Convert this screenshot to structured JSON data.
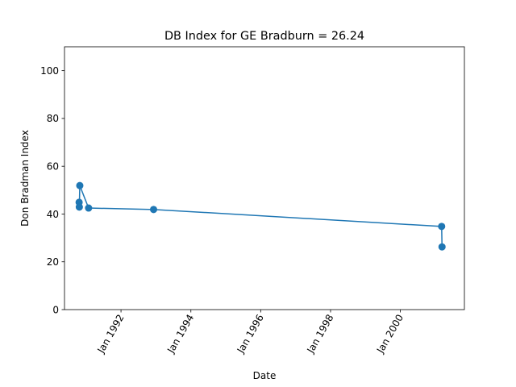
{
  "chart_data": {
    "type": "line",
    "title": "DB Index for GE Bradburn = 26.24",
    "xlabel": "Date",
    "ylabel": "Don Bradman Index",
    "x_axis": "date",
    "xlim": [
      "1990-05-20",
      "2001-11-01"
    ],
    "ylim": [
      0,
      110
    ],
    "xticks": [
      {
        "value": "1992-01-01",
        "label": "Jan 1992"
      },
      {
        "value": "1994-01-01",
        "label": "Jan 1994"
      },
      {
        "value": "1996-01-01",
        "label": "Jan 1996"
      },
      {
        "value": "1998-01-01",
        "label": "Jan 1998"
      },
      {
        "value": "2000-01-01",
        "label": "Jan 2000"
      }
    ],
    "yticks": [
      0,
      20,
      40,
      60,
      80,
      100
    ],
    "grid": false,
    "legend": "none",
    "series": [
      {
        "color": "#1f77b4",
        "marker": "circle",
        "x": [
          "1990-10-20",
          "1990-10-22",
          "1990-10-27",
          "1991-01-27",
          "1992-12-07",
          "2001-03-08",
          "2001-03-12"
        ],
        "y": [
          44.9,
          42.9,
          51.9,
          42.5,
          41.9,
          34.8,
          26.24
        ]
      }
    ]
  }
}
